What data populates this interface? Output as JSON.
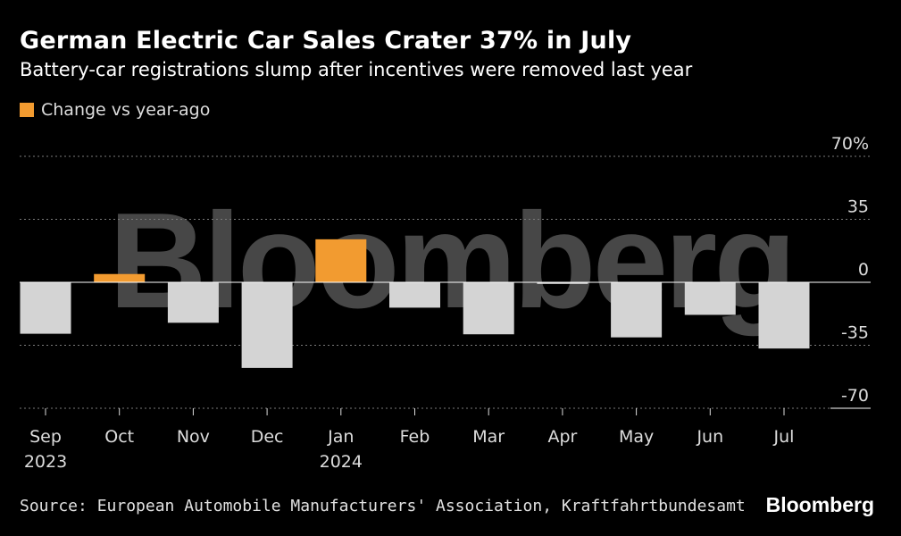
{
  "title": "German Electric Car Sales Crater 37% in July",
  "subtitle": "Battery-car registrations slump after incentives were removed last year",
  "brand": "Bloomberg",
  "watermark": "Bloomberg",
  "source": "Source: European Automobile Manufacturers' Association, Kraftfahrtbundesamt",
  "colors": {
    "background": "#000000",
    "positive": "#f29b30",
    "negative": "#d4d4d4",
    "grid": "#7a7a7a",
    "zero_line": "#ffffff"
  },
  "chart_data": {
    "type": "bar",
    "title": "German Electric Car Sales Crater 37% in July",
    "subtitle": "Battery-car registrations slump after incentives were removed last year",
    "legend": [
      {
        "name": "Change vs year-ago",
        "color": "#f29b30"
      }
    ],
    "categories": [
      "Sep",
      "Oct",
      "Nov",
      "Dec",
      "Jan",
      "Feb",
      "Mar",
      "Apr",
      "May",
      "Jun",
      "Jul"
    ],
    "year_labels": [
      "2023",
      "",
      "",
      "",
      "2024",
      "",
      "",
      "",
      "",
      "",
      ""
    ],
    "series": [
      {
        "name": "Change vs year-ago",
        "values": [
          -28.6,
          4.6,
          -22.5,
          -47.6,
          23.9,
          -14.1,
          -28.9,
          -0.9,
          -30.6,
          -18.1,
          -36.8
        ]
      }
    ],
    "ylim": [
      -70,
      70
    ],
    "yticks": [
      -70,
      -35,
      0,
      35,
      70
    ],
    "ytick_labels": [
      "-70",
      "-35",
      "0",
      "35",
      "70%"
    ],
    "grid": true,
    "xlabel": "",
    "ylabel": ""
  }
}
